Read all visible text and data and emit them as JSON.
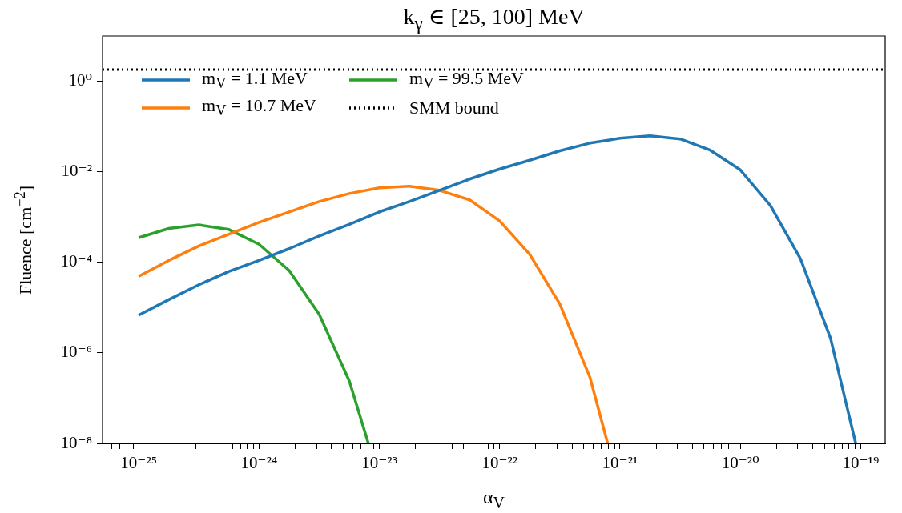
{
  "chart_data": {
    "type": "line",
    "title": "k$_{γ}$ ∈ [25, 100] MeV",
    "xlabel": "α$_{V}$",
    "ylabel": "Fluence [cm$^{−2}$]",
    "log": "xy",
    "grid": false,
    "legend": "top left",
    "line_style": "solid",
    "xlim": [
      5e-26,
      1.6e-19
    ],
    "ylim": [
      1e-08,
      10
    ],
    "xticks": [
      {
        "value": 6e-26,
        "label": null
      },
      {
        "value": 7e-26,
        "label": null
      },
      {
        "value": 8e-26,
        "label": null
      },
      {
        "value": 9e-26,
        "label": null
      },
      {
        "value": 1e-25,
        "label": "10⁻²⁵"
      },
      {
        "value": 2e-25,
        "label": null
      },
      {
        "value": 3e-25,
        "label": null
      },
      {
        "value": 4e-25,
        "label": null
      },
      {
        "value": 5e-25,
        "label": null
      },
      {
        "value": 6e-25,
        "label": null
      },
      {
        "value": 7e-25,
        "label": null
      },
      {
        "value": 8e-25,
        "label": null
      },
      {
        "value": 9e-25,
        "label": null
      },
      {
        "value": 1e-24,
        "label": "10⁻²⁴"
      },
      {
        "value": 2e-24,
        "label": null
      },
      {
        "value": 3e-24,
        "label": null
      },
      {
        "value": 4e-24,
        "label": null
      },
      {
        "value": 5e-24,
        "label": null
      },
      {
        "value": 6e-24,
        "label": null
      },
      {
        "value": 7e-24,
        "label": null
      },
      {
        "value": 8e-24,
        "label": null
      },
      {
        "value": 9e-24,
        "label": null
      },
      {
        "value": 1e-23,
        "label": "10⁻²³"
      },
      {
        "value": 2e-23,
        "label": null
      },
      {
        "value": 3e-23,
        "label": null
      },
      {
        "value": 4e-23,
        "label": null
      },
      {
        "value": 5e-23,
        "label": null
      },
      {
        "value": 6e-23,
        "label": null
      },
      {
        "value": 7e-23,
        "label": null
      },
      {
        "value": 8e-23,
        "label": null
      },
      {
        "value": 9e-23,
        "label": null
      },
      {
        "value": 1e-22,
        "label": "10⁻²²"
      },
      {
        "value": 2e-22,
        "label": null
      },
      {
        "value": 3e-22,
        "label": null
      },
      {
        "value": 4e-22,
        "label": null
      },
      {
        "value": 5e-22,
        "label": null
      },
      {
        "value": 6e-22,
        "label": null
      },
      {
        "value": 7e-22,
        "label": null
      },
      {
        "value": 8e-22,
        "label": null
      },
      {
        "value": 9e-22,
        "label": null
      },
      {
        "value": 1e-21,
        "label": "10⁻²¹"
      },
      {
        "value": 2e-21,
        "label": null
      },
      {
        "value": 3e-21,
        "label": null
      },
      {
        "value": 4e-21,
        "label": null
      },
      {
        "value": 5e-21,
        "label": null
      },
      {
        "value": 6e-21,
        "label": null
      },
      {
        "value": 7e-21,
        "label": null
      },
      {
        "value": 8e-21,
        "label": null
      },
      {
        "value": 9e-21,
        "label": null
      },
      {
        "value": 1e-20,
        "label": "10⁻²⁰"
      },
      {
        "value": 2e-20,
        "label": null
      },
      {
        "value": 3e-20,
        "label": null
      },
      {
        "value": 4e-20,
        "label": null
      },
      {
        "value": 5e-20,
        "label": null
      },
      {
        "value": 6e-20,
        "label": null
      },
      {
        "value": 7e-20,
        "label": null
      },
      {
        "value": 8e-20,
        "label": null
      },
      {
        "value": 9e-20,
        "label": null
      },
      {
        "value": 1e-19,
        "label": "10⁻¹⁹"
      }
    ],
    "yticks": [
      {
        "value": 1e-08,
        "label": "10⁻⁸"
      },
      {
        "value": 1e-06,
        "label": "10⁻⁶"
      },
      {
        "value": 0.0001,
        "label": "10⁻⁴"
      },
      {
        "value": 0.01,
        "label": "10⁻²"
      },
      {
        "value": 1,
        "label": "10⁰"
      }
    ],
    "ref_lines": [
      {
        "axis": "y",
        "value": 1.8,
        "label": "SMM bound",
        "color": "#000000",
        "line_style": "dotted"
      }
    ],
    "series": [
      {
        "name": "m$_{V}$ = 1.1 MeV",
        "color": "#1f77b4",
        "x": [
          1e-25,
          1.778e-25,
          3.162e-25,
          5.623e-25,
          1e-24,
          1.778e-24,
          3.162e-24,
          5.623e-24,
          1e-23,
          1.778e-23,
          3.162e-23,
          5.623e-23,
          1e-22,
          1.778e-22,
          3.162e-22,
          5.623e-22,
          1e-21,
          1.778e-21,
          3.162e-21,
          5.623e-21,
          1e-20,
          1.778e-20,
          3.162e-20,
          5.623e-20,
          9.1e-20
        ],
        "values": [
          6.8e-06,
          1.5e-05,
          3.2e-05,
          6.3e-05,
          0.00011,
          0.0002,
          0.00038,
          0.00069,
          0.0013,
          0.0022,
          0.0039,
          0.0069,
          0.0115,
          0.018,
          0.029,
          0.043,
          0.055,
          0.062,
          0.053,
          0.03,
          0.011,
          0.0018,
          0.00012,
          2.1e-06,
          1e-08
        ]
      },
      {
        "name": "m$_{V}$ = 10.7 MeV",
        "color": "#ff7f0e",
        "x": [
          1e-25,
          1.778e-25,
          3.162e-25,
          5.623e-25,
          1e-24,
          1.778e-24,
          3.162e-24,
          5.623e-24,
          1e-23,
          1.778e-23,
          3.162e-23,
          5.623e-23,
          1e-22,
          1.778e-22,
          3.162e-22,
          5.623e-22,
          7.9e-22
        ],
        "values": [
          4.9e-05,
          0.00011,
          0.00023,
          0.00042,
          0.00076,
          0.0013,
          0.0022,
          0.0033,
          0.0044,
          0.0048,
          0.0039,
          0.0024,
          0.00082,
          0.00015,
          1.2e-05,
          2.9e-07,
          1e-08
        ]
      },
      {
        "name": "m$_{V}$ = 99.5 MeV",
        "color": "#2ca02c",
        "x": [
          1e-25,
          1.778e-25,
          3.162e-25,
          5.623e-25,
          1e-24,
          1.778e-24,
          3.162e-24,
          5.623e-24,
          8.1e-24
        ],
        "values": [
          0.00035,
          0.00056,
          0.00067,
          0.00053,
          0.00025,
          6.6e-05,
          7.1e-06,
          2.4e-07,
          1e-08
        ]
      }
    ]
  }
}
